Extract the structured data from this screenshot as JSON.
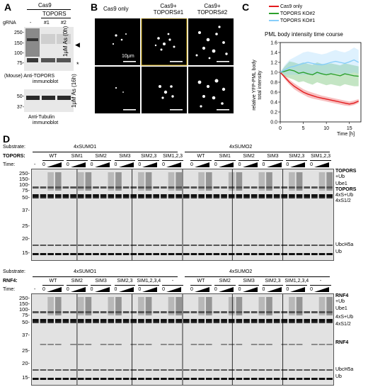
{
  "panelA": {
    "label": "A",
    "cas9": "Cas9",
    "topors": "TOPORS",
    "gRNA": "gRNA",
    "lanes": [
      "-",
      "#1",
      "#2"
    ],
    "mw_top": [
      "250-",
      "150-",
      "100-",
      "75-"
    ],
    "mw_bottom": [
      "50-",
      "37-"
    ],
    "caption_top_1": "(Mouse) Anti-TOPORS",
    "caption_top_2": "immunoblot",
    "caption_bottom_1": "Anti-Tubulin",
    "caption_bottom_2": "immunoblot",
    "arrow": "◀",
    "star": "*"
  },
  "panelB": {
    "label": "B",
    "col_titles": [
      "Cas9 only",
      "Cas9+\nTOPORS#1",
      "Cas9+\nTOPORS#2"
    ],
    "row_titles": [
      "1μM As (0h)",
      "1μM As (16h)"
    ],
    "scalebar": "10μm"
  },
  "panelC": {
    "label": "C",
    "title": "PML body intensity time course",
    "ylabel": "relative YFP-PML body\ntotal intensity",
    "xlabel": "Time [h]",
    "legend": [
      "Cas9 only",
      "TOPORS KO#2",
      "TOPORS KO#1"
    ],
    "legend_colors": [
      "#e31a1c",
      "#2ca02c",
      "#87cefa"
    ]
  },
  "chart_data": {
    "type": "line",
    "title": "PML body intensity time course",
    "xlabel": "Time [h]",
    "ylabel": "relative YFP-PML body total intensity",
    "xlim": [
      0,
      17.5
    ],
    "ylim": [
      0,
      1.6
    ],
    "xticks": [
      0,
      5,
      10,
      15
    ],
    "yticks": [
      0,
      0.2,
      0.4,
      0.6,
      0.8,
      1.0,
      1.2,
      1.4,
      1.6
    ],
    "x": [
      0,
      1,
      2,
      3,
      4,
      5,
      6,
      7,
      8,
      9,
      10,
      11,
      12,
      13,
      14,
      15,
      16,
      17
    ],
    "series": [
      {
        "name": "Cas9 only",
        "color": "#e31a1c",
        "values": [
          1.0,
          0.9,
          0.8,
          0.72,
          0.66,
          0.6,
          0.56,
          0.53,
          0.5,
          0.48,
          0.46,
          0.44,
          0.42,
          0.4,
          0.38,
          0.36,
          0.38,
          0.42
        ],
        "lower": [
          1.0,
          0.86,
          0.75,
          0.66,
          0.6,
          0.55,
          0.5,
          0.47,
          0.45,
          0.43,
          0.41,
          0.39,
          0.37,
          0.35,
          0.33,
          0.32,
          0.34,
          0.38
        ],
        "upper": [
          1.0,
          0.94,
          0.85,
          0.78,
          0.72,
          0.66,
          0.62,
          0.59,
          0.56,
          0.53,
          0.51,
          0.49,
          0.47,
          0.45,
          0.43,
          0.41,
          0.43,
          0.46
        ]
      },
      {
        "name": "TOPORS KO#2",
        "color": "#2ca02c",
        "values": [
          1.0,
          1.02,
          1.05,
          1.03,
          0.98,
          1.0,
          0.97,
          0.95,
          1.0,
          0.97,
          0.95,
          0.97,
          0.95,
          0.93,
          0.97,
          0.95,
          0.93,
          0.92
        ],
        "lower": [
          1.0,
          0.92,
          0.88,
          0.85,
          0.8,
          0.82,
          0.78,
          0.75,
          0.8,
          0.77,
          0.74,
          0.76,
          0.74,
          0.72,
          0.76,
          0.74,
          0.72,
          0.72
        ],
        "upper": [
          1.0,
          1.12,
          1.22,
          1.2,
          1.17,
          1.2,
          1.17,
          1.15,
          1.2,
          1.17,
          1.16,
          1.18,
          1.16,
          1.14,
          1.18,
          1.16,
          1.14,
          1.12
        ]
      },
      {
        "name": "TOPORS KO#1",
        "color": "#87cefa",
        "values": [
          1.0,
          1.05,
          1.1,
          1.12,
          1.15,
          1.18,
          1.2,
          1.18,
          1.16,
          1.15,
          1.17,
          1.2,
          1.22,
          1.2,
          1.18,
          1.21,
          1.25,
          1.2
        ],
        "lower": [
          1.0,
          0.95,
          0.95,
          0.95,
          0.95,
          0.95,
          0.95,
          0.95,
          0.95,
          0.95,
          0.95,
          0.97,
          0.98,
          0.97,
          0.95,
          0.97,
          1.0,
          0.97
        ],
        "upper": [
          1.0,
          1.15,
          1.25,
          1.3,
          1.35,
          1.4,
          1.42,
          1.4,
          1.38,
          1.36,
          1.38,
          1.42,
          1.45,
          1.42,
          1.4,
          1.44,
          1.5,
          1.45
        ]
      }
    ]
  },
  "panelD": {
    "label": "D",
    "top": {
      "substrate_label": "Substrate:",
      "substrates": [
        "4xSUMO1",
        "4xSUMO2"
      ],
      "enzyme_label": "TOPORS:",
      "variants": [
        "WT",
        "SIM1",
        "SIM2",
        "SIM3",
        "SIM2,3",
        "SIM1,2,3",
        "WT",
        "SIM1",
        "SIM2",
        "SIM3",
        "SIM2,3",
        "SIM1,2,3"
      ],
      "time_label": "Time:",
      "zero": "0",
      "dash": "-",
      "mw": [
        "250-",
        "150-",
        "100-",
        "75-",
        "50-",
        "37-",
        "25-",
        "20-",
        "15-"
      ],
      "right_labels": [
        "TOPORS",
        "+Ub",
        "Ube1",
        "TOPORS",
        "4xS+Ub",
        "4xS1/2",
        "UbcH5a",
        "Ub"
      ]
    },
    "bottom": {
      "substrate_label": "Substrate:",
      "substrates": [
        "4xSUMO1",
        "4xSUMO2"
      ],
      "enzyme_label": "RNF4:",
      "variants": [
        "WT",
        "SIM2",
        "SIM3",
        "SIM2,3",
        "SIM1,2,3,4",
        "-",
        "WT",
        "SIM2",
        "SIM3",
        "SIM2,3",
        "SIM1,2,3,4",
        "-"
      ],
      "time_label": "Time:",
      "zero": "0",
      "dash": "-",
      "mw": [
        "250-",
        "150-",
        "100-",
        "75-",
        "50-",
        "37-",
        "25-",
        "20-",
        "15-"
      ],
      "right_labels": [
        "RNF4",
        "+Ub",
        "Ube1",
        "4xS+Ub",
        "4xS1/2",
        "RNF4",
        "UbcH5a",
        "Ub"
      ]
    }
  }
}
